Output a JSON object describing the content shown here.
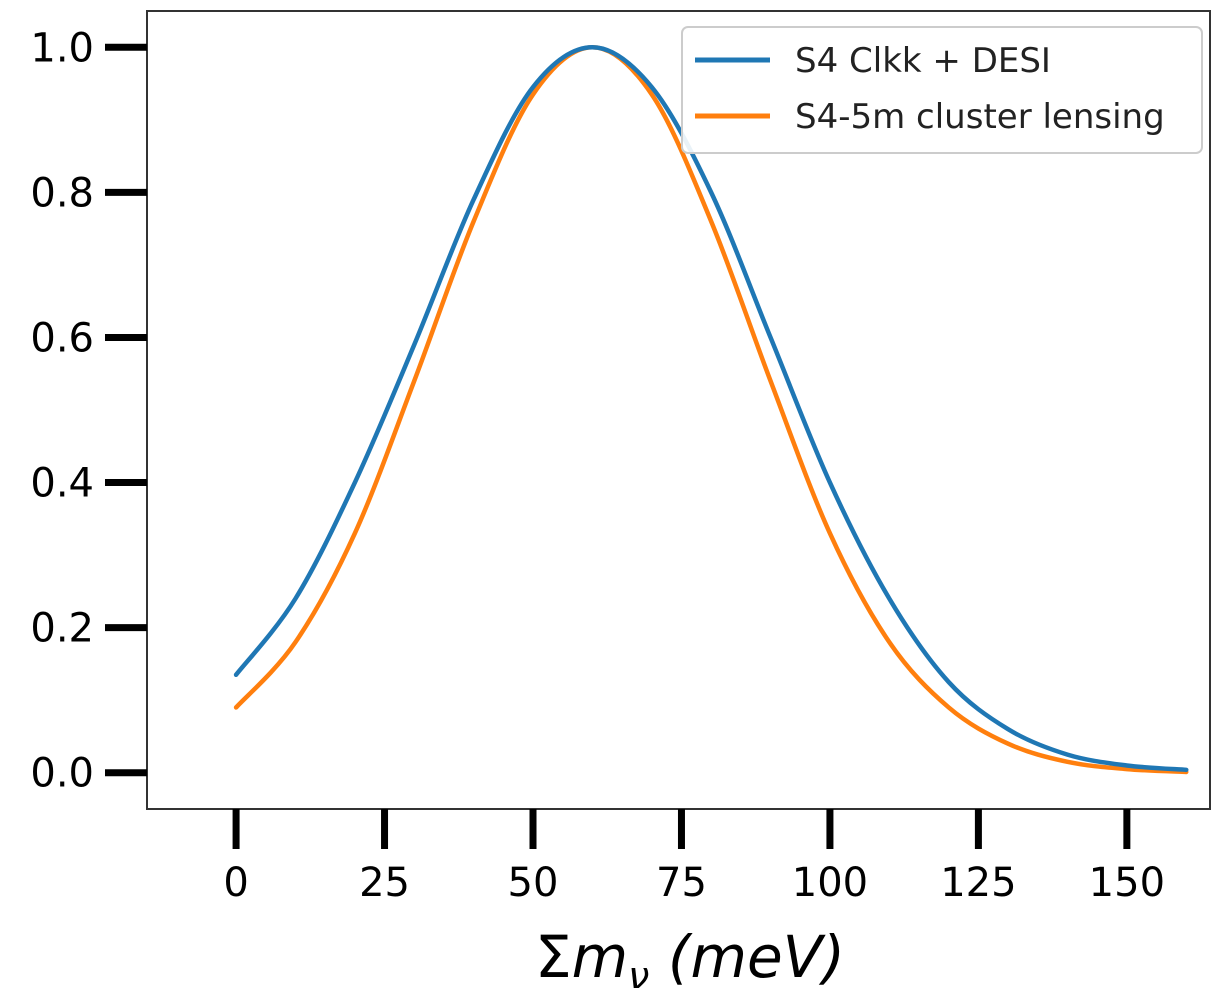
{
  "chart_data": {
    "type": "line",
    "title": "",
    "xlabel": "Σm_ν (meV)",
    "xlabel_parts": {
      "sigma": "Σ",
      "m": "m",
      "sub": "ν",
      "unit": " (meV)"
    },
    "ylabel": "",
    "xlim": [
      -15,
      164
    ],
    "ylim": [
      -0.05,
      1.05
    ],
    "x_ticks": [
      0,
      25,
      50,
      75,
      100,
      125,
      150
    ],
    "x_tick_labels": [
      "0",
      "25",
      "50",
      "75",
      "100",
      "125",
      "150"
    ],
    "y_ticks": [
      0.0,
      0.2,
      0.4,
      0.6,
      0.8,
      1.0
    ],
    "y_tick_labels": [
      "0.0",
      "0.2",
      "0.4",
      "0.6",
      "0.8",
      "1.0"
    ],
    "grid": false,
    "legend_position": "top-right",
    "series": [
      {
        "name": "S4 Clkk + DESI",
        "color": "#1f77b4",
        "x": [
          0,
          10,
          20,
          30,
          40,
          50,
          60,
          70,
          80,
          90,
          100,
          110,
          120,
          130,
          140,
          150,
          160
        ],
        "y": [
          0.135,
          0.24,
          0.4,
          0.59,
          0.79,
          0.945,
          1.0,
          0.945,
          0.8,
          0.6,
          0.4,
          0.24,
          0.125,
          0.06,
          0.025,
          0.01,
          0.004
        ]
      },
      {
        "name": "S4-5m cluster lensing",
        "color": "#ff7f0e",
        "x": [
          0,
          10,
          20,
          30,
          40,
          50,
          60,
          70,
          80,
          90,
          100,
          110,
          120,
          130,
          140,
          150,
          160
        ],
        "y": [
          0.09,
          0.18,
          0.33,
          0.54,
          0.76,
          0.935,
          1.0,
          0.935,
          0.76,
          0.54,
          0.33,
          0.18,
          0.09,
          0.04,
          0.015,
          0.005,
          0.001
        ]
      }
    ]
  }
}
